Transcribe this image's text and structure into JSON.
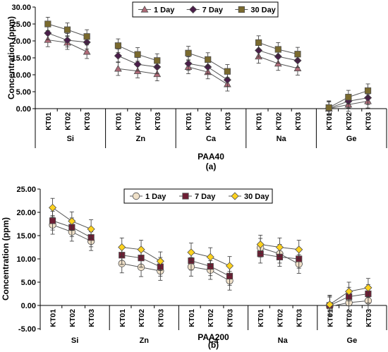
{
  "chart_data": [
    {
      "type": "line",
      "panel_label": "(a)",
      "xlabel": "PAA40",
      "ylabel": "Concentration (ppm)",
      "ylim": [
        0,
        30
      ],
      "yticks": [
        "0.00",
        "5.00",
        "10.00",
        "15.00",
        "20.00",
        "25.00",
        "30.00"
      ],
      "yticks_values": [
        0,
        5,
        10,
        15,
        20,
        25,
        30
      ],
      "groups": [
        "Si",
        "Zn",
        "Ca",
        "Na",
        "Ge"
      ],
      "sub_categories": [
        "KT01",
        "KT02",
        "KT03"
      ],
      "legend_position": "top-center",
      "series": [
        {
          "name": "1 Day",
          "marker": "triangle",
          "color": "#b06a78",
          "values": [
            [
              20.3,
              19.5,
              16.8
            ],
            [
              11.8,
              11.1,
              10.2
            ],
            [
              12.3,
              10.8,
              7.2
            ],
            [
              15.4,
              13.3,
              11.9
            ],
            [
              0.0,
              1.2,
              2.2
            ]
          ]
        },
        {
          "name": "7 Day",
          "marker": "diamond",
          "color": "#4b1e4a",
          "values": [
            [
              22.3,
              20.2,
              19.6
            ],
            [
              15.6,
              13.1,
              12.3
            ],
            [
              13.3,
              12.3,
              8.5
            ],
            [
              17.2,
              15.4,
              14.2
            ],
            [
              0.1,
              2.2,
              3.2
            ]
          ]
        },
        {
          "name": "30 Day",
          "marker": "square",
          "color": "#7a6a2e",
          "values": [
            [
              25.0,
              23.3,
              21.3
            ],
            [
              18.6,
              16.0,
              14.2
            ],
            [
              16.4,
              14.5,
              11.0
            ],
            [
              19.5,
              17.5,
              16.1
            ],
            [
              0.3,
              3.4,
              5.3
            ]
          ]
        }
      ]
    },
    {
      "type": "line",
      "panel_label": "(b)",
      "xlabel": "PAA200",
      "ylabel": "Concentration (ppm)",
      "ylim": [
        -5,
        25
      ],
      "yticks": [
        "-5.00",
        "0.00",
        "5.00",
        "10.00",
        "15.00",
        "20.00",
        "25.00"
      ],
      "yticks_values": [
        -5,
        0,
        5,
        10,
        15,
        20,
        25
      ],
      "groups": [
        "Si",
        "Zn",
        "Ca",
        "Na",
        "Ge"
      ],
      "sub_categories": [
        "KT01",
        "KT02",
        "KT03"
      ],
      "legend_position": "top-right",
      "series": [
        {
          "name": "1 Day",
          "marker": "circle",
          "color": "#efe0c8",
          "values": [
            [
              17.3,
              15.8,
              13.8
            ],
            [
              9.0,
              8.2,
              7.4
            ],
            [
              8.3,
              7.6,
              5.3
            ],
            [
              12.4,
              11.1,
              8.9
            ],
            [
              -0.2,
              0.6,
              1.0
            ]
          ]
        },
        {
          "name": "7 Day",
          "marker": "square",
          "color": "#6e1e34",
          "values": [
            [
              18.2,
              16.8,
              14.6
            ],
            [
              10.8,
              10.2,
              8.3
            ],
            [
              9.6,
              8.4,
              6.3
            ],
            [
              11.1,
              10.4,
              10.0
            ],
            [
              0.0,
              1.9,
              2.5
            ]
          ]
        },
        {
          "name": "30 Day",
          "marker": "diamond",
          "color": "#ffd21e",
          "values": [
            [
              21.0,
              18.1,
              16.4
            ],
            [
              12.5,
              12.0,
              9.5
            ],
            [
              11.4,
              10.4,
              8.5
            ],
            [
              13.1,
              12.5,
              12.0
            ],
            [
              0.2,
              3.0,
              3.8
            ]
          ]
        }
      ]
    }
  ]
}
